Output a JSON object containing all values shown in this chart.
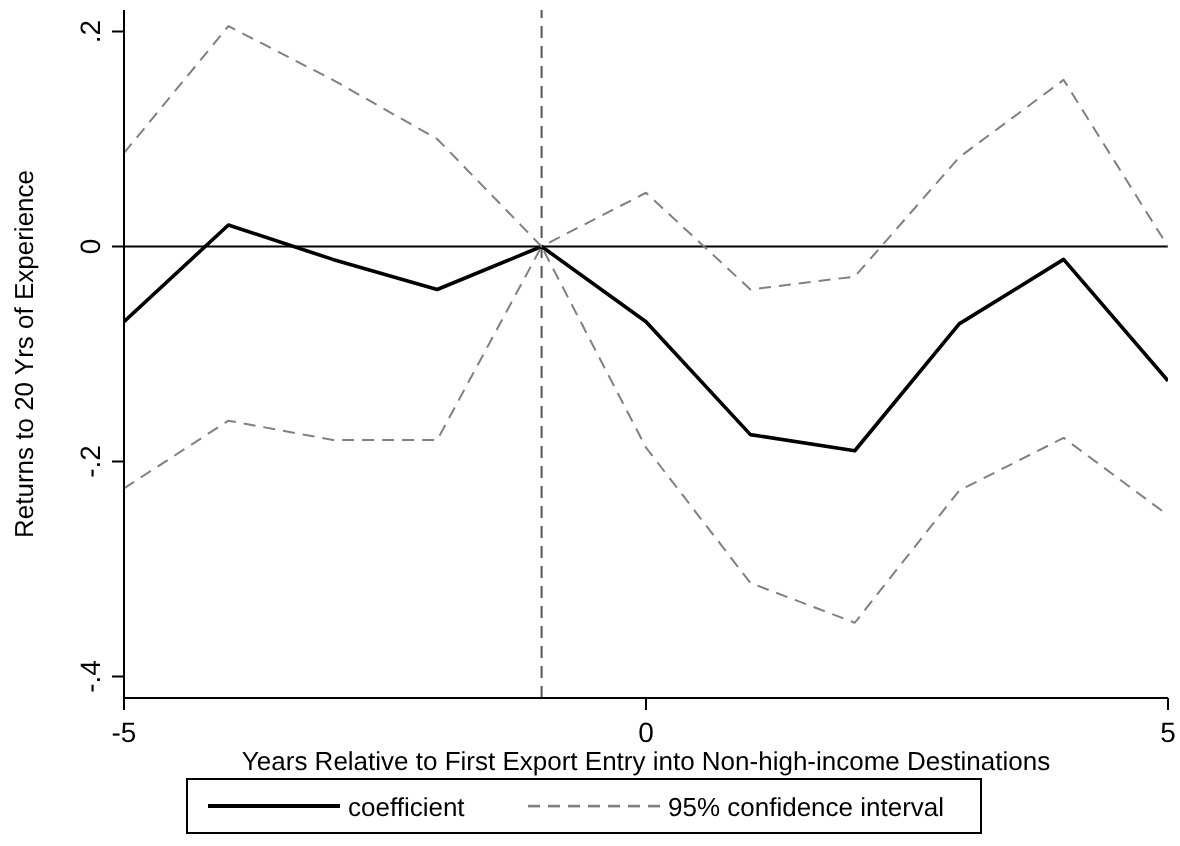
{
  "chart_data": {
    "type": "line",
    "xlabel": "Years Relative to First Export Entry into Non-high-income Destinations",
    "ylabel": "Returns to 20 Yrs of Experience",
    "x": [
      -5,
      -4,
      -3,
      -2,
      -1,
      0,
      1,
      2,
      3,
      4,
      5
    ],
    "series": [
      {
        "name": "coefficient",
        "color": "#000000",
        "line_style": "solid",
        "values": [
          -0.07,
          0.02,
          -0.012,
          -0.04,
          0,
          -0.07,
          -0.175,
          -0.19,
          -0.072,
          -0.012,
          -0.125
        ]
      },
      {
        "name": "95% confidence interval",
        "color": "#808080",
        "line_style": "dashed",
        "values": [
          0.087,
          0.205,
          0.155,
          0.1,
          0,
          0.05,
          -0.04,
          -0.028,
          0.083,
          0.155,
          0
        ]
      },
      {
        "color": "#808080",
        "line_style": "dashed",
        "values": [
          -0.225,
          -0.162,
          -0.18,
          -0.18,
          0,
          -0.187,
          -0.313,
          -0.35,
          -0.227,
          -0.178,
          -0.25
        ]
      }
    ],
    "xlim": [
      -5,
      5
    ],
    "xticks": [
      -5,
      0,
      5
    ],
    "ylim": [
      -0.42,
      0.22
    ],
    "yticks": [
      {
        "value": -0.4,
        "label": "-.4"
      },
      {
        "value": -0.2,
        "label": "-.2"
      },
      {
        "value": 0,
        "label": "0"
      },
      {
        "value": 0.2,
        "label": ".2"
      }
    ],
    "ref_lines": [
      {
        "axis": "x",
        "value": -1,
        "color": "#555555",
        "line_style": "dashed"
      },
      {
        "axis": "y",
        "value": 0,
        "color": "#000000",
        "line_style": "solid"
      }
    ],
    "grid": false,
    "legend": "bottom",
    "marker": "none"
  }
}
